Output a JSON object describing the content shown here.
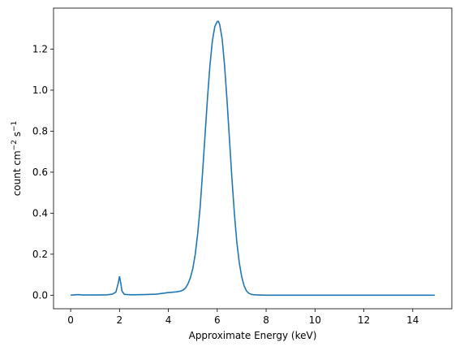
{
  "chart_data": {
    "type": "line",
    "title": "",
    "xlabel": "Approximate Energy (keV)",
    "ylabel": "count cm",
    "ylabel_exp1": "−2",
    "ylabel_mid": " s",
    "ylabel_exp2": "−1",
    "xlim": [
      -0.7,
      15.6
    ],
    "ylim": [
      -0.066,
      1.4
    ],
    "xticks": [
      0,
      2,
      4,
      6,
      8,
      10,
      12,
      14
    ],
    "yticks": [
      0.0,
      0.2,
      0.4,
      0.6,
      0.8,
      1.0,
      1.2
    ],
    "xtick_labels": [
      "0",
      "2",
      "4",
      "6",
      "8",
      "10",
      "12",
      "14"
    ],
    "ytick_labels": [
      "0.0",
      "0.2",
      "0.4",
      "0.6",
      "0.8",
      "1.0",
      "1.2"
    ],
    "grid": false,
    "line_color": "#1f77b4",
    "series": [
      {
        "x": [
          0.0,
          0.3,
          0.5,
          1.0,
          1.5,
          1.7,
          1.85,
          1.95,
          2.0,
          2.05,
          2.1,
          2.2,
          2.5,
          3.0,
          3.5,
          4.0,
          4.3,
          4.5,
          4.6,
          4.7,
          4.8,
          4.9,
          5.0,
          5.1,
          5.2,
          5.3,
          5.4,
          5.5,
          5.6,
          5.7,
          5.8,
          5.9,
          6.0,
          6.05,
          6.1,
          6.2,
          6.3,
          6.4,
          6.5,
          6.6,
          6.7,
          6.8,
          6.9,
          7.0,
          7.1,
          7.2,
          7.3,
          7.4,
          7.5,
          7.7,
          8.0,
          9.0,
          10.0,
          11.0,
          12.0,
          13.0,
          14.0,
          14.9
        ],
        "y": [
          0.0,
          0.003,
          0.001,
          0.001,
          0.002,
          0.005,
          0.015,
          0.06,
          0.092,
          0.06,
          0.02,
          0.004,
          0.002,
          0.003,
          0.005,
          0.013,
          0.016,
          0.02,
          0.025,
          0.035,
          0.055,
          0.085,
          0.13,
          0.2,
          0.3,
          0.43,
          0.6,
          0.78,
          0.96,
          1.12,
          1.24,
          1.31,
          1.335,
          1.335,
          1.32,
          1.25,
          1.12,
          0.95,
          0.76,
          0.57,
          0.4,
          0.26,
          0.16,
          0.09,
          0.045,
          0.02,
          0.009,
          0.004,
          0.002,
          0.001,
          0.0,
          0.0,
          0.0,
          0.0,
          0.0,
          0.0,
          0.0,
          0.0
        ]
      }
    ]
  }
}
